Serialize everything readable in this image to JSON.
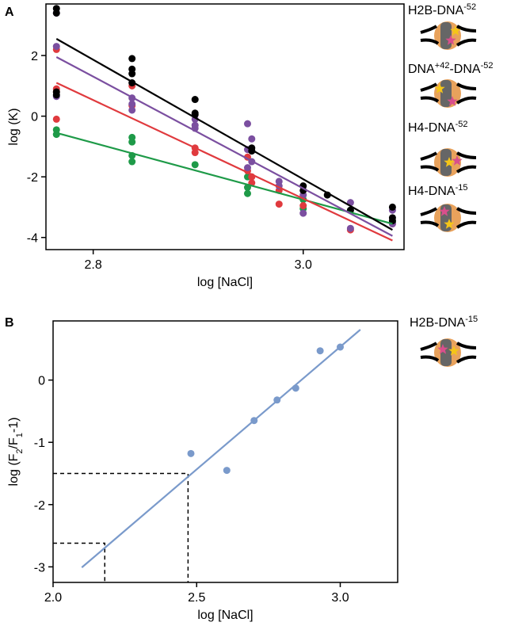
{
  "chart_data": [
    {
      "type": "scatter",
      "panel": "A",
      "xlabel": "log [NaCl]",
      "ylabel_parts": [
        "log (K)"
      ],
      "xlim": [
        2.755,
        3.096
      ],
      "ylim": [
        -4.4,
        3.7
      ],
      "xticks": [
        2.8,
        {
          "value": 3,
          "label": "3.0"
        }
      ],
      "yticks": [
        -4,
        -2,
        0,
        2
      ],
      "series": [
        {
          "label_parts": [
            "H2B-DNA",
            "-52"
          ],
          "color": "#1e9a48",
          "x": [
            2.765,
            2.765,
            2.837,
            2.837,
            2.837,
            2.837,
            2.897,
            2.947,
            2.947,
            2.947,
            3.0,
            3.0,
            3.045,
            3.085
          ],
          "y": [
            -0.45,
            -0.6,
            -0.7,
            -0.85,
            -1.3,
            -1.5,
            -1.6,
            -2.0,
            -2.35,
            -2.55,
            -2.75,
            -3.05,
            -3.1,
            -3.5
          ],
          "fit": {
            "x": [
              2.765,
              3.085
            ],
            "y": [
              -0.55,
              -3.55
            ]
          }
        },
        {
          "label_parts": [
            "DNA",
            "+42",
            "-DNA",
            "-52"
          ],
          "color": "#e03a3e",
          "x": [
            2.765,
            2.765,
            2.765,
            2.765,
            2.837,
            2.837,
            2.897,
            2.897,
            2.947,
            2.947,
            2.951,
            2.951,
            2.977,
            2.977,
            3.0,
            3.045,
            3.085
          ],
          "y": [
            2.2,
            0.9,
            0.8,
            -0.1,
            1.0,
            0.35,
            -1.05,
            -1.2,
            -1.35,
            -1.8,
            -2.0,
            -2.2,
            -2.45,
            -2.9,
            -2.95,
            -3.75,
            -3.55
          ],
          "fit": {
            "x": [
              2.765,
              3.085
            ],
            "y": [
              1.1,
              -4.1
            ]
          }
        },
        {
          "label_parts": [
            "H4-DNA",
            "-52"
          ],
          "color": "#7b4fa0",
          "x": [
            2.765,
            2.765,
            2.765,
            2.837,
            2.837,
            2.837,
            2.897,
            2.897,
            2.897,
            2.947,
            2.947,
            2.947,
            2.951,
            2.951,
            2.977,
            2.977,
            3.0,
            3.0,
            3.045,
            3.045,
            3.085,
            3.085
          ],
          "y": [
            3.4,
            2.3,
            0.65,
            0.6,
            0.4,
            0.2,
            -0.1,
            -0.3,
            -0.4,
            -0.25,
            -1.1,
            -1.7,
            -0.75,
            -1.5,
            -2.15,
            -2.3,
            -2.6,
            -3.2,
            -2.85,
            -3.7,
            -3.1,
            -3.55
          ],
          "fit": {
            "x": [
              2.765,
              3.085
            ],
            "y": [
              1.95,
              -3.95
            ]
          }
        },
        {
          "label_parts": [
            "H4-DNA",
            "-15"
          ],
          "color": "#000000",
          "x": [
            2.765,
            2.765,
            2.765,
            2.765,
            2.837,
            2.837,
            2.837,
            2.837,
            2.897,
            2.897,
            2.897,
            2.951,
            2.951,
            3.0,
            3.0,
            3.023,
            3.045,
            3.085,
            3.085,
            3.085
          ],
          "y": [
            3.55,
            3.4,
            0.8,
            0.7,
            1.9,
            1.55,
            1.4,
            1.1,
            0.55,
            0.1,
            0.05,
            -1.05,
            -1.15,
            -2.3,
            -2.45,
            -2.6,
            -3.1,
            -3.0,
            -3.35,
            -3.45
          ],
          "fit": {
            "x": [
              2.765,
              3.085
            ],
            "y": [
              2.55,
              -3.75
            ]
          }
        }
      ]
    },
    {
      "type": "scatter",
      "panel": "B",
      "xlabel": "log [NaCl]",
      "ylabel_parts": [
        "log (F",
        "2",
        "/F",
        "1",
        "-1)"
      ],
      "xlim": [
        2.0,
        3.2
      ],
      "ylim": [
        -3.25,
        0.95
      ],
      "xticks": [
        {
          "value": 2,
          "label": "2.0"
        },
        2.5,
        {
          "value": 3,
          "label": "3.0"
        }
      ],
      "yticks": [
        -3,
        -2,
        -1,
        0
      ],
      "series": [
        {
          "label_parts": [
            "H2B-DNA",
            "-15"
          ],
          "color": "#7a9acb",
          "label_color": "#2a8bbd",
          "x": [
            2.48,
            2.605,
            2.7,
            2.78,
            2.845,
            2.93,
            3.0
          ],
          "y": [
            -1.18,
            -1.45,
            -0.65,
            -0.32,
            -0.13,
            0.47,
            0.53
          ],
          "fit": {
            "x": [
              2.1,
              3.07
            ],
            "y": [
              -3.01,
              0.81
            ]
          }
        }
      ],
      "guides": [
        {
          "x": 2.47,
          "y": -1.5
        },
        {
          "x": 2.18,
          "y": -2.62
        }
      ]
    }
  ]
}
